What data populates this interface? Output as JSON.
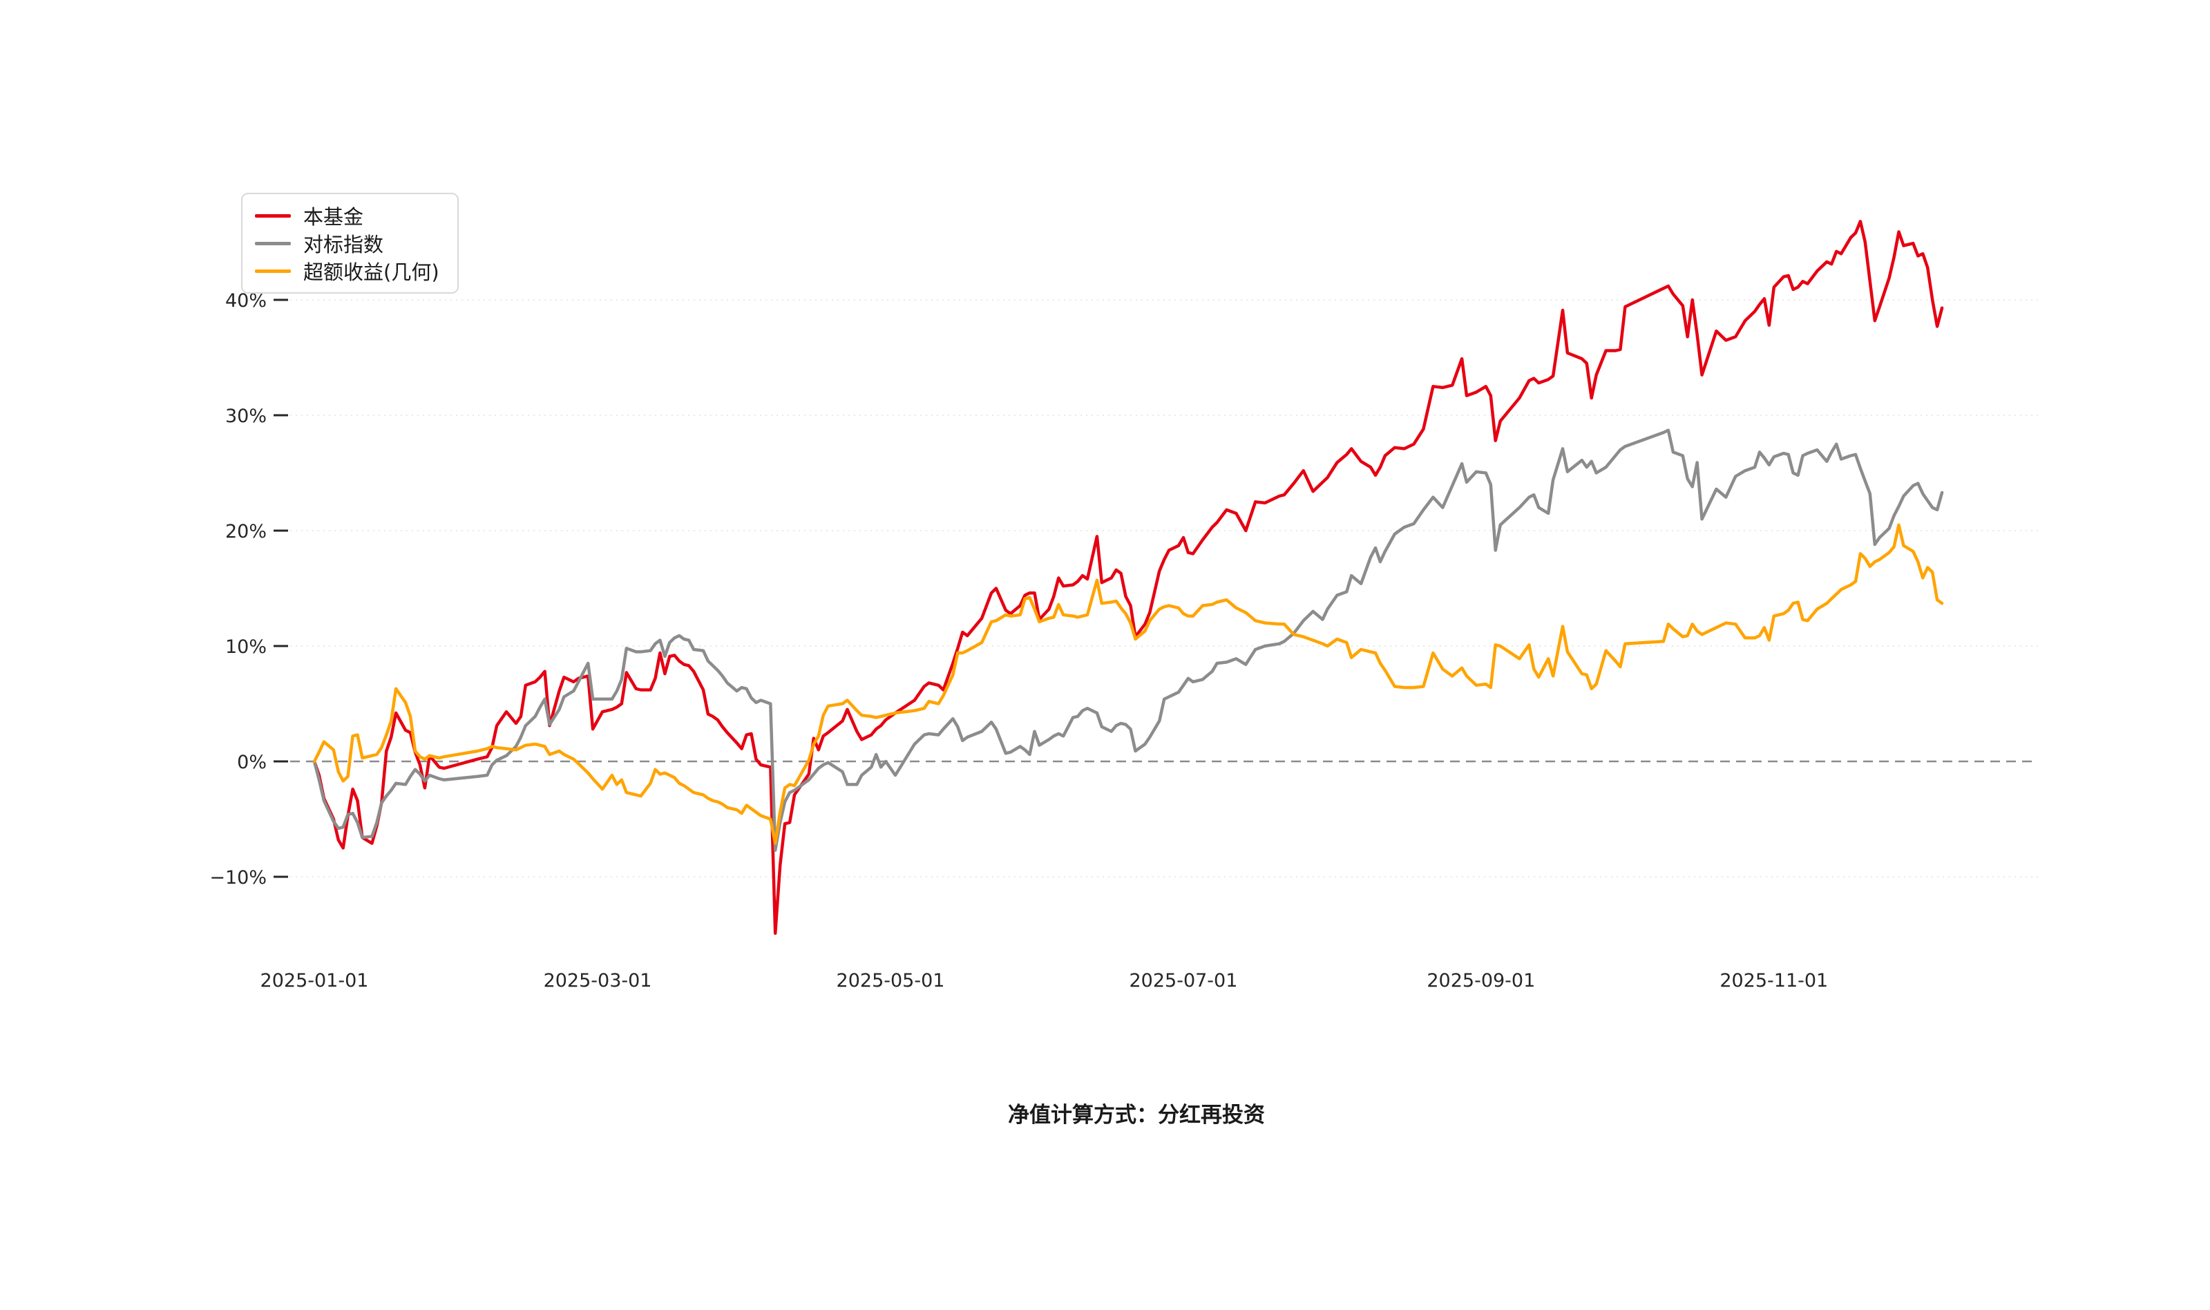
{
  "footer": {
    "note": "净值计算方式：分红再投资"
  },
  "legend": {
    "items": [
      {
        "label": "本基金",
        "color": "#e60012"
      },
      {
        "label": "对标指数",
        "color": "#8c8c8c"
      },
      {
        "label": "超额收益(几何)",
        "color": "#ffa400"
      }
    ]
  },
  "chart_data": {
    "type": "line",
    "title": "",
    "xlabel": "",
    "ylabel": "",
    "grid": "horizontal-dotted",
    "zero_line": "dashed",
    "legend_position": "upper-left",
    "y_axis": {
      "unit": "%",
      "ylim": [
        -18,
        50
      ],
      "ticks": [
        {
          "value": 40,
          "label": "40%"
        },
        {
          "value": 30,
          "label": "30%"
        },
        {
          "value": 20,
          "label": "20%"
        },
        {
          "value": 10,
          "label": "10%"
        },
        {
          "value": 0,
          "label": "0%"
        },
        {
          "value": -10,
          "label": "−10%"
        }
      ]
    },
    "x_axis": {
      "ticks": [
        {
          "date": "2025-01-01",
          "label": "2025-01-01"
        },
        {
          "date": "2025-03-01",
          "label": "2025-03-01"
        },
        {
          "date": "2025-05-01",
          "label": "2025-05-01"
        },
        {
          "date": "2025-07-01",
          "label": "2025-07-01"
        },
        {
          "date": "2025-09-01",
          "label": "2025-09-01"
        },
        {
          "date": "2025-11-01",
          "label": "2025-11-01"
        }
      ]
    },
    "x": [
      "2025-01-01",
      "2025-01-02",
      "2025-01-03",
      "2025-01-05",
      "2025-01-06",
      "2025-01-07",
      "2025-01-08",
      "2025-01-09",
      "2025-01-10",
      "2025-01-11",
      "2025-01-13",
      "2025-01-14",
      "2025-01-15",
      "2025-01-16",
      "2025-01-17",
      "2025-01-18",
      "2025-01-20",
      "2025-01-21",
      "2025-01-22",
      "2025-01-23",
      "2025-01-24",
      "2025-01-25",
      "2025-01-27",
      "2025-01-28",
      "2025-02-04",
      "2025-02-06",
      "2025-02-07",
      "2025-02-08",
      "2025-02-10",
      "2025-02-12",
      "2025-02-13",
      "2025-02-14",
      "2025-02-16",
      "2025-02-17",
      "2025-02-18",
      "2025-02-19",
      "2025-02-21",
      "2025-02-22",
      "2025-02-24",
      "2025-02-25",
      "2025-02-27",
      "2025-02-28",
      "2025-03-02",
      "2025-03-04",
      "2025-03-05",
      "2025-03-06",
      "2025-03-07",
      "2025-03-09",
      "2025-03-10",
      "2025-03-12",
      "2025-03-13",
      "2025-03-14",
      "2025-03-15",
      "2025-03-16",
      "2025-03-17",
      "2025-03-18",
      "2025-03-19",
      "2025-03-20",
      "2025-03-21",
      "2025-03-23",
      "2025-03-24",
      "2025-03-25",
      "2025-03-26",
      "2025-03-27",
      "2025-03-28",
      "2025-03-30",
      "2025-03-31",
      "2025-04-01",
      "2025-04-02",
      "2025-04-03",
      "2025-04-04",
      "2025-04-06",
      "2025-04-07",
      "2025-04-08",
      "2025-04-09",
      "2025-04-10",
      "2025-04-11",
      "2025-04-14",
      "2025-04-15",
      "2025-04-16",
      "2025-04-17",
      "2025-04-18",
      "2025-04-21",
      "2025-04-22",
      "2025-04-24",
      "2025-04-25",
      "2025-04-27",
      "2025-04-28",
      "2025-04-29",
      "2025-04-30",
      "2025-05-02",
      "2025-05-06",
      "2025-05-08",
      "2025-05-09",
      "2025-05-11",
      "2025-05-12",
      "2025-05-14",
      "2025-05-15",
      "2025-05-16",
      "2025-05-17",
      "2025-05-20",
      "2025-05-22",
      "2025-05-23",
      "2025-05-25",
      "2025-05-26",
      "2025-05-28",
      "2025-05-29",
      "2025-05-30",
      "2025-05-31",
      "2025-06-01",
      "2025-06-03",
      "2025-06-04",
      "2025-06-05",
      "2025-06-06",
      "2025-06-08",
      "2025-06-09",
      "2025-06-10",
      "2025-06-11",
      "2025-06-13",
      "2025-06-14",
      "2025-06-16",
      "2025-06-17",
      "2025-06-18",
      "2025-06-19",
      "2025-06-20",
      "2025-06-21",
      "2025-06-23",
      "2025-06-24",
      "2025-06-26",
      "2025-06-27",
      "2025-06-28",
      "2025-06-30",
      "2025-07-01",
      "2025-07-02",
      "2025-07-03",
      "2025-07-05",
      "2025-07-07",
      "2025-07-08",
      "2025-07-10",
      "2025-07-12",
      "2025-07-14",
      "2025-07-16",
      "2025-07-18",
      "2025-07-21",
      "2025-07-22",
      "2025-07-24",
      "2025-07-26",
      "2025-07-28",
      "2025-07-30",
      "2025-07-31",
      "2025-08-02",
      "2025-08-04",
      "2025-08-05",
      "2025-08-07",
      "2025-08-09",
      "2025-08-10",
      "2025-08-11",
      "2025-08-12",
      "2025-08-14",
      "2025-08-16",
      "2025-08-18",
      "2025-08-20",
      "2025-08-22",
      "2025-08-24",
      "2025-08-26",
      "2025-08-28",
      "2025-08-29",
      "2025-08-31",
      "2025-09-02",
      "2025-09-03",
      "2025-09-04",
      "2025-09-05",
      "2025-09-09",
      "2025-09-11",
      "2025-09-12",
      "2025-09-13",
      "2025-09-15",
      "2025-09-16",
      "2025-09-18",
      "2025-09-19",
      "2025-09-22",
      "2025-09-23",
      "2025-09-24",
      "2025-09-25",
      "2025-09-27",
      "2025-09-29",
      "2025-09-30",
      "2025-10-01",
      "2025-10-09",
      "2025-10-10",
      "2025-10-11",
      "2025-10-13",
      "2025-10-14",
      "2025-10-15",
      "2025-10-16",
      "2025-10-17",
      "2025-10-20",
      "2025-10-22",
      "2025-10-24",
      "2025-10-26",
      "2025-10-28",
      "2025-10-29",
      "2025-10-30",
      "2025-10-31",
      "2025-11-01",
      "2025-11-03",
      "2025-11-04",
      "2025-11-05",
      "2025-11-06",
      "2025-11-07",
      "2025-11-08",
      "2025-11-10",
      "2025-11-12",
      "2025-11-13",
      "2025-11-14",
      "2025-11-15",
      "2025-11-17",
      "2025-11-18",
      "2025-11-19",
      "2025-11-20",
      "2025-11-21",
      "2025-11-22",
      "2025-11-23",
      "2025-11-25",
      "2025-11-26",
      "2025-11-27",
      "2025-11-28",
      "2025-11-30",
      "2025-12-01",
      "2025-12-02",
      "2025-12-03",
      "2025-12-04",
      "2025-12-05",
      "2025-12-06"
    ],
    "series": [
      {
        "name": "本基金",
        "color": "#e60012",
        "values": [
          0.0,
          -1.2,
          -3.2,
          -5.0,
          -6.8,
          -7.5,
          -4.7,
          -2.4,
          -3.4,
          -6.6,
          -7.1,
          -5.6,
          -3.6,
          0.9,
          2.1,
          4.2,
          2.7,
          2.5,
          0.8,
          -0.3,
          -2.3,
          0.5,
          -0.5,
          -0.6,
          0.2,
          0.4,
          1.2,
          3.1,
          4.3,
          3.3,
          3.9,
          6.6,
          6.9,
          7.3,
          7.8,
          3.1,
          6.1,
          7.3,
          6.9,
          7.2,
          7.4,
          2.8,
          4.3,
          4.5,
          4.7,
          5.0,
          7.7,
          6.3,
          6.2,
          6.2,
          7.2,
          9.4,
          7.6,
          9.1,
          9.2,
          8.7,
          8.4,
          8.3,
          7.8,
          6.2,
          4.1,
          3.9,
          3.6,
          3.0,
          2.5,
          1.6,
          1.1,
          2.3,
          2.4,
          0.2,
          -0.3,
          -0.5,
          -14.9,
          -9.0,
          -5.4,
          -5.3,
          -2.9,
          -1.1,
          2.0,
          1.0,
          2.2,
          2.5,
          3.5,
          4.5,
          2.6,
          1.9,
          2.3,
          2.8,
          3.1,
          3.6,
          4.2,
          5.3,
          6.5,
          6.8,
          6.6,
          6.2,
          8.5,
          9.8,
          11.2,
          10.9,
          12.4,
          14.6,
          15.0,
          13.1,
          12.8,
          13.5,
          14.4,
          14.6,
          14.6,
          12.3,
          13.2,
          14.3,
          15.9,
          15.2,
          15.3,
          15.6,
          16.1,
          15.8,
          19.5,
          15.5,
          15.9,
          16.6,
          16.3,
          14.3,
          13.5,
          10.8,
          11.9,
          12.9,
          16.5,
          17.5,
          18.3,
          18.7,
          19.4,
          18.1,
          18.0,
          19.2,
          20.3,
          20.7,
          21.8,
          21.5,
          20.0,
          22.5,
          22.4,
          23.0,
          23.1,
          24.1,
          25.2,
          23.4,
          24.2,
          24.6,
          25.9,
          26.6,
          27.1,
          26.0,
          25.5,
          24.8,
          25.5,
          26.5,
          27.2,
          27.1,
          27.5,
          28.8,
          32.5,
          32.4,
          32.6,
          34.9,
          31.7,
          32.0,
          32.5,
          31.7,
          27.8,
          29.5,
          31.5,
          33.0,
          33.2,
          32.8,
          33.1,
          33.4,
          39.1,
          35.4,
          34.9,
          34.5,
          31.5,
          33.5,
          35.6,
          35.6,
          35.7,
          39.4,
          41.0,
          41.2,
          40.5,
          39.5,
          36.8,
          40.0,
          37.0,
          33.5,
          37.3,
          36.5,
          36.8,
          38.2,
          39.0,
          39.6,
          40.1,
          37.8,
          41.1,
          42.0,
          42.1,
          40.9,
          41.1,
          41.6,
          41.4,
          42.5,
          43.3,
          43.1,
          44.2,
          44.0,
          45.4,
          45.8,
          46.8,
          45.0,
          41.6,
          38.2,
          39.4,
          41.9,
          43.7,
          45.9,
          44.7,
          44.9,
          43.8,
          44.0,
          42.8,
          40.0,
          37.7,
          39.3
        ]
      },
      {
        "name": "对标指数",
        "color": "#8c8c8c",
        "values": [
          0.0,
          -1.6,
          -3.4,
          -5.2,
          -5.8,
          -5.7,
          -4.6,
          -4.5,
          -5.3,
          -6.6,
          -6.5,
          -5.3,
          -3.6,
          -3.0,
          -2.5,
          -1.9,
          -2.0,
          -1.3,
          -0.7,
          -1.1,
          -1.7,
          -1.2,
          -1.5,
          -1.6,
          -1.3,
          -1.2,
          -0.3,
          0.1,
          0.5,
          1.3,
          2.1,
          3.1,
          3.9,
          4.7,
          5.4,
          3.2,
          4.5,
          5.6,
          6.1,
          6.9,
          8.5,
          5.4,
          5.4,
          5.4,
          6.1,
          7.1,
          9.8,
          9.5,
          9.5,
          9.6,
          10.2,
          10.5,
          9.1,
          10.3,
          10.7,
          10.9,
          10.6,
          10.5,
          9.7,
          9.6,
          8.7,
          8.3,
          7.9,
          7.4,
          6.8,
          6.1,
          6.4,
          6.3,
          5.5,
          5.1,
          5.3,
          5.0,
          -7.7,
          -5.3,
          -3.5,
          -2.7,
          -2.5,
          -1.6,
          -1.1,
          -0.6,
          -0.3,
          -0.1,
          -0.9,
          -2.0,
          -2.0,
          -1.2,
          -0.5,
          0.6,
          -0.5,
          0.0,
          -1.2,
          1.5,
          2.3,
          2.4,
          2.3,
          2.8,
          3.7,
          3.0,
          1.8,
          2.1,
          2.6,
          3.4,
          2.8,
          0.7,
          0.8,
          1.3,
          1.0,
          0.6,
          2.6,
          1.4,
          1.9,
          2.2,
          2.4,
          2.2,
          3.8,
          3.9,
          4.4,
          4.6,
          4.2,
          3.0,
          2.6,
          3.1,
          3.3,
          3.2,
          2.8,
          0.9,
          1.5,
          2.1,
          3.5,
          5.4,
          5.6,
          6.0,
          6.6,
          7.2,
          6.9,
          7.1,
          7.8,
          8.5,
          8.6,
          8.9,
          8.4,
          9.7,
          10.0,
          10.2,
          10.4,
          11.1,
          12.2,
          13.0,
          12.3,
          13.2,
          14.4,
          14.7,
          16.1,
          15.4,
          17.7,
          18.5,
          17.3,
          18.2,
          19.7,
          20.3,
          20.6,
          21.8,
          22.9,
          22.0,
          23.9,
          25.8,
          24.2,
          25.1,
          25.0,
          24.0,
          18.3,
          20.5,
          22.0,
          22.9,
          23.1,
          22.0,
          21.5,
          24.4,
          27.1,
          25.1,
          26.1,
          25.5,
          26.0,
          25.0,
          25.5,
          26.5,
          27.0,
          27.3,
          28.5,
          28.7,
          26.8,
          26.5,
          24.5,
          23.8,
          25.9,
          21.0,
          23.6,
          22.9,
          24.7,
          25.2,
          25.5,
          26.8,
          26.3,
          25.7,
          26.4,
          26.7,
          26.6,
          25.0,
          24.8,
          26.5,
          26.7,
          27.0,
          26.0,
          26.8,
          27.5,
          26.2,
          26.5,
          26.6,
          25.4,
          24.3,
          23.2,
          18.8,
          19.4,
          20.2,
          21.3,
          22.1,
          23.0,
          23.9,
          24.1,
          23.2,
          22.6,
          22.0,
          21.8,
          23.3
        ]
      },
      {
        "name": "超额收益(几何)",
        "color": "#ffa400",
        "values": [
          0.0,
          0.8,
          1.7,
          1.0,
          -0.9,
          -1.7,
          -1.3,
          2.2,
          2.3,
          0.3,
          0.5,
          0.6,
          1.2,
          2.3,
          3.5,
          6.3,
          5.1,
          3.9,
          0.9,
          0.4,
          0.2,
          0.5,
          0.3,
          0.4,
          0.9,
          1.1,
          1.3,
          1.2,
          1.1,
          1.0,
          1.2,
          1.4,
          1.5,
          1.4,
          1.3,
          0.6,
          0.9,
          0.6,
          0.2,
          -0.2,
          -1.0,
          -1.5,
          -2.4,
          -1.2,
          -2.0,
          -1.6,
          -2.7,
          -2.9,
          -3.0,
          -1.9,
          -0.7,
          -1.1,
          -1.0,
          -1.2,
          -1.4,
          -1.9,
          -2.1,
          -2.4,
          -2.7,
          -2.9,
          -3.2,
          -3.4,
          -3.5,
          -3.7,
          -4.0,
          -4.2,
          -4.5,
          -3.8,
          -4.1,
          -4.4,
          -4.7,
          -5.0,
          -7.1,
          -4.4,
          -2.3,
          -2.0,
          -2.1,
          0.1,
          1.5,
          2.2,
          4.0,
          4.8,
          5.0,
          5.3,
          4.4,
          4.0,
          3.9,
          3.8,
          3.9,
          4.0,
          4.2,
          4.4,
          4.6,
          5.2,
          5.0,
          5.7,
          7.5,
          9.4,
          9.4,
          9.6,
          10.3,
          12.1,
          12.2,
          12.7,
          12.6,
          12.7,
          14.1,
          14.2,
          13.2,
          12.1,
          12.4,
          12.5,
          13.6,
          12.7,
          12.6,
          12.5,
          12.6,
          12.7,
          15.7,
          13.7,
          13.8,
          13.9,
          13.3,
          12.8,
          12.0,
          10.6,
          11.3,
          12.2,
          13.2,
          13.4,
          13.5,
          13.3,
          12.8,
          12.6,
          12.6,
          13.5,
          13.6,
          13.8,
          14.0,
          13.3,
          12.9,
          12.2,
          12.0,
          11.9,
          11.9,
          11.0,
          10.8,
          10.5,
          10.2,
          10.0,
          10.6,
          10.3,
          9.0,
          9.7,
          9.5,
          9.4,
          8.5,
          7.9,
          6.5,
          6.4,
          6.4,
          6.5,
          9.4,
          8.0,
          7.4,
          8.1,
          7.4,
          6.6,
          6.7,
          6.4,
          10.1,
          10.0,
          8.9,
          10.1,
          8.0,
          7.3,
          8.9,
          7.4,
          11.7,
          9.5,
          7.6,
          7.5,
          6.3,
          6.7,
          9.6,
          8.7,
          8.2,
          10.2,
          10.4,
          11.9,
          11.5,
          10.8,
          10.9,
          11.9,
          11.3,
          11.0,
          11.6,
          12.0,
          11.9,
          10.7,
          10.7,
          10.9,
          11.6,
          10.5,
          12.6,
          12.8,
          13.1,
          13.7,
          13.8,
          12.3,
          12.2,
          13.2,
          13.7,
          14.1,
          14.5,
          14.9,
          15.3,
          15.6,
          18.0,
          17.6,
          16.9,
          17.3,
          17.5,
          18.1,
          18.6,
          20.5,
          18.7,
          18.2,
          17.3,
          15.9,
          16.8,
          16.4,
          14.0,
          13.7
        ]
      }
    ]
  }
}
